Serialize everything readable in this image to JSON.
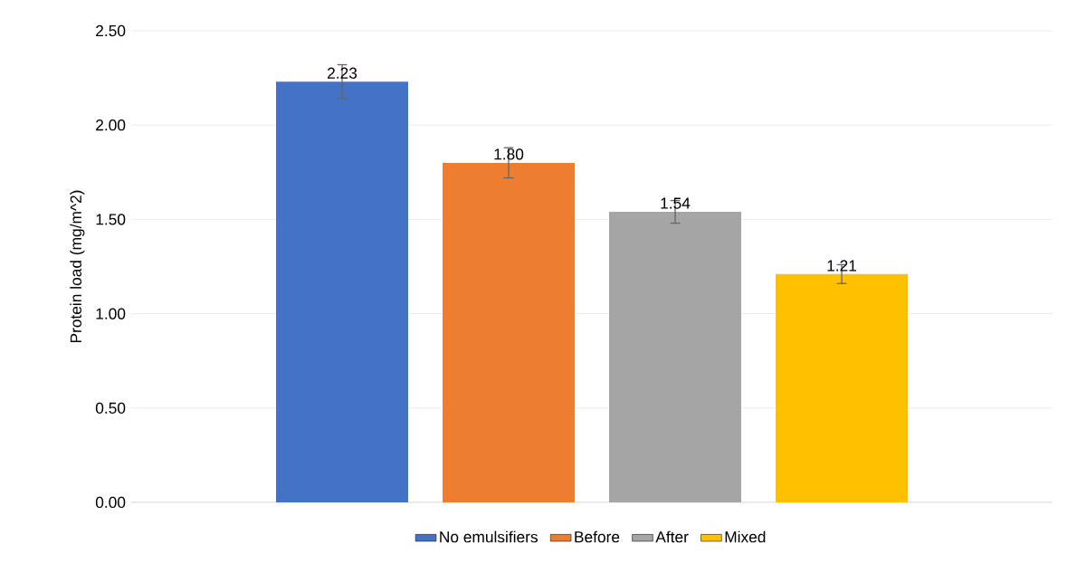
{
  "chart_data": {
    "type": "bar",
    "ylabel": "Protein load (mg/m^2)",
    "categories": [
      null
    ],
    "series": [
      {
        "name": "No emulsifiers",
        "color": "#4472c4",
        "values": [
          2.23
        ],
        "errors": [
          0.09
        ],
        "value_labels": [
          "2.23"
        ]
      },
      {
        "name": "Before",
        "color": "#ed7d31",
        "values": [
          1.8
        ],
        "errors": [
          0.08
        ],
        "value_labels": [
          "1.80"
        ]
      },
      {
        "name": "After",
        "color": "#a5a5a5",
        "values": [
          1.54
        ],
        "errors": [
          0.06
        ],
        "value_labels": [
          "1.54"
        ]
      },
      {
        "name": "Mixed",
        "color": "#ffc000",
        "values": [
          1.21
        ],
        "errors": [
          0.05
        ],
        "value_labels": [
          "1.21"
        ]
      }
    ],
    "ylim": [
      0,
      2.5
    ],
    "yticks": [
      {
        "value": 0,
        "label": "0.00"
      },
      {
        "value": 0.5,
        "label": "0.50"
      },
      {
        "value": 1,
        "label": "1.00"
      },
      {
        "value": 1.5,
        "label": "1.50"
      },
      {
        "value": 2,
        "label": "2.00"
      },
      {
        "value": 2.5,
        "label": "2.50"
      }
    ],
    "grid": "y",
    "legend": "bottom"
  }
}
